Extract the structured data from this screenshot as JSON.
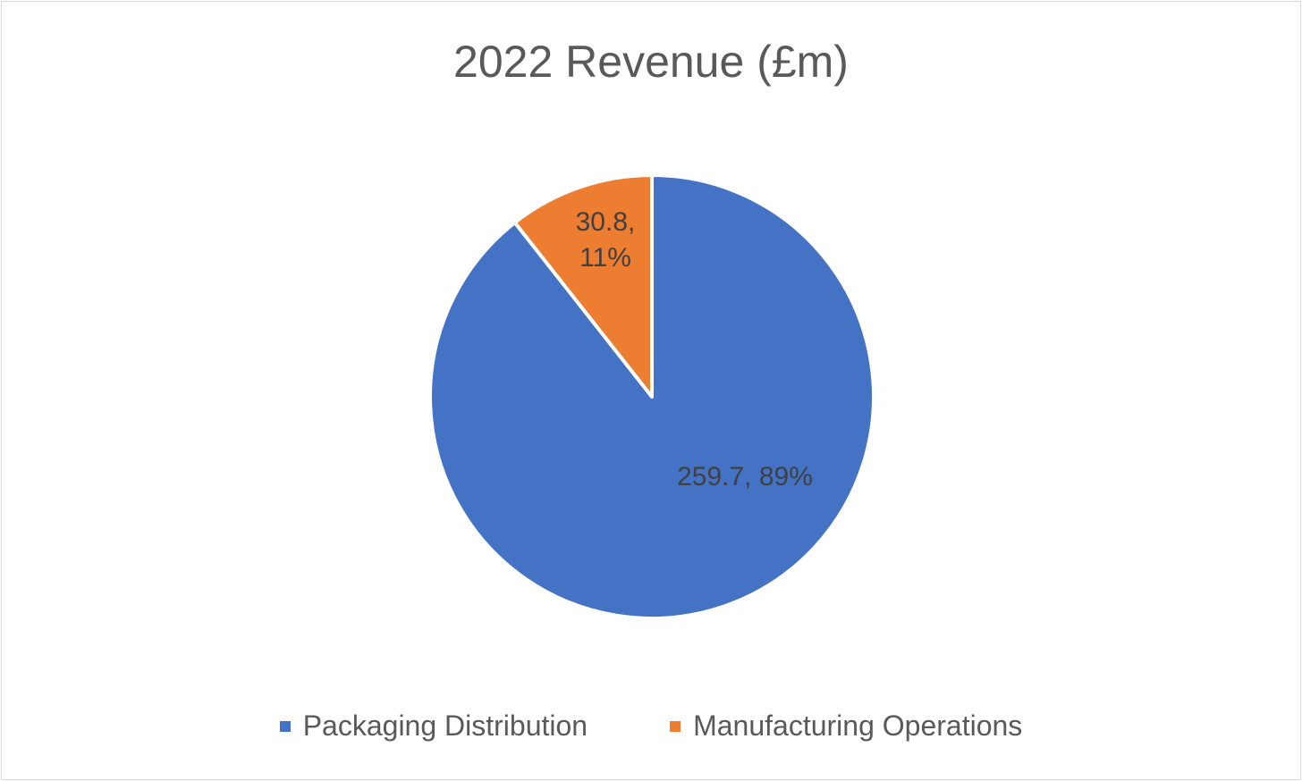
{
  "chart_data": {
    "type": "pie",
    "title": "2022 Revenue (£m)",
    "categories": [
      "Packaging Distribution",
      "Manufacturing Operations"
    ],
    "values": [
      259.7,
      30.8
    ],
    "percentages": [
      "89%",
      "11%"
    ],
    "data_labels": [
      "259.7, 89%",
      "30.8,\n11%"
    ],
    "colors": [
      "#4472C4",
      "#ED7D31"
    ],
    "legend_position": "bottom"
  }
}
